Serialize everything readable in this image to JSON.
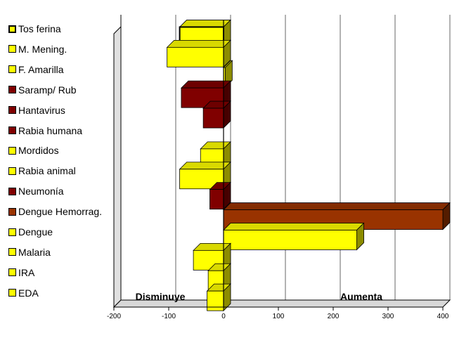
{
  "chart_data": {
    "type": "bar",
    "orientation": "horizontal",
    "categories": [
      "Tos ferina",
      "M. Mening.",
      "F. Amarilla",
      "Saramp/ Rub",
      "Hantavirus",
      "Rabia humana",
      "Mordidos",
      "Rabia animal",
      "Neumonía",
      "Dengue Hemorrag.",
      "Dengue",
      "Malaria",
      "IRA",
      "EDA"
    ],
    "values": [
      -80,
      -103,
      3,
      -77,
      -37,
      0,
      -42,
      -80,
      -25,
      400,
      243,
      -55,
      -28,
      -30
    ],
    "colors": [
      "#ffff00",
      "#ffff00",
      "#ffff00",
      "#800000",
      "#800000",
      "#800000",
      "#ffff00",
      "#ffff00",
      "#800000",
      "#993300",
      "#ffff00",
      "#ffff00",
      "#ffff00",
      "#ffff00"
    ],
    "xlim": [
      -200,
      400
    ],
    "xticks": [
      "-200",
      "-100",
      "0",
      "100",
      "200",
      "300",
      "400"
    ],
    "annotations": [
      "Disminuye",
      "Aumenta"
    ],
    "legend_position": "left",
    "grid": true,
    "style": "3d"
  }
}
